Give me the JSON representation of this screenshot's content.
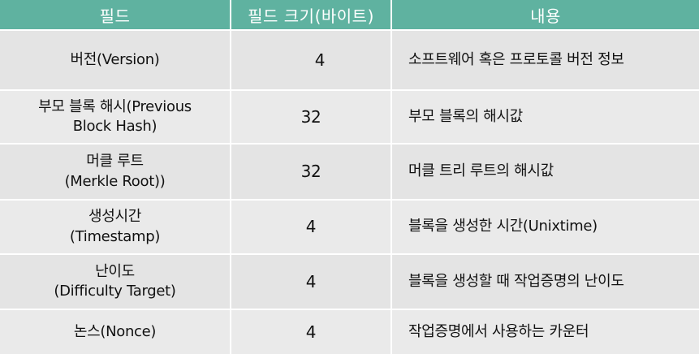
{
  "header": {
    "field": "필드",
    "size": "필드 크기(바이트)",
    "content": "내용"
  },
  "rows": [
    {
      "field_line1": "버전(Version)",
      "field_line2": "",
      "size": "4",
      "content": "소프트웨어 혹은 프로토콜 버전 정보"
    },
    {
      "field_line1": "부모 블록 해시(Previous",
      "field_line2": "Block Hash)",
      "size": "32",
      "content": "부모 블록의 해시값"
    },
    {
      "field_line1": "머클 루트",
      "field_line2": "(Merkle Root))",
      "size": "32",
      "content": "머클 트리 루트의 해시값"
    },
    {
      "field_line1": "생성시간",
      "field_line2": "(Timestamp)",
      "size": "4",
      "content": "블록을 생성한 시간(Unixtime)"
    },
    {
      "field_line1": "난이도",
      "field_line2": "(Difficulty Target)",
      "size": "4",
      "content": "블록을 생성할 때 작업증명의 난이도"
    },
    {
      "field_line1": "논스(Nonce)",
      "field_line2": "",
      "size": "4",
      "content": "작업증명에서 사용하는 카운터"
    }
  ]
}
